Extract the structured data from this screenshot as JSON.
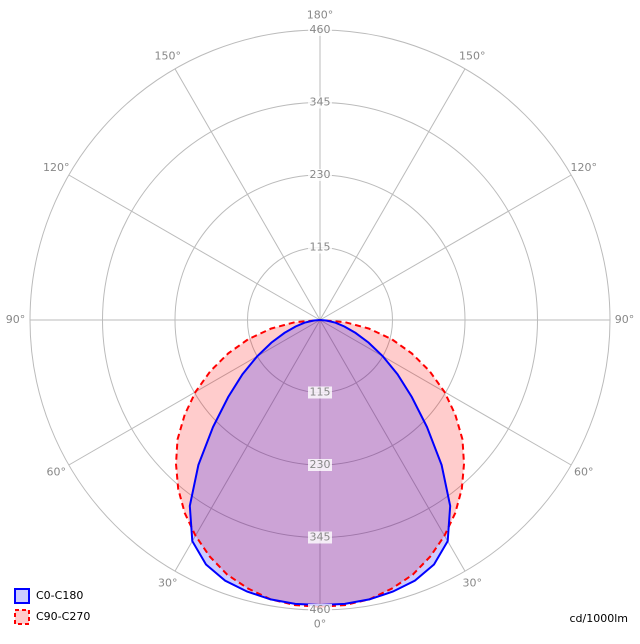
{
  "chart_data": {
    "type": "polar",
    "unit": "cd/1000lm",
    "rlim": [
      0,
      460
    ],
    "rticks": [
      115,
      230,
      345,
      460
    ],
    "angle_ticks": [
      {
        "value": 0,
        "label": "0°"
      },
      {
        "value": 30,
        "label": "30°"
      },
      {
        "value": 60,
        "label": "60°"
      },
      {
        "value": 90,
        "label": "90°"
      },
      {
        "value": 120,
        "label": "120°"
      },
      {
        "value": 150,
        "label": "150°"
      },
      {
        "value": 180,
        "label": "180°"
      }
    ],
    "gamma": [
      0,
      5,
      10,
      15,
      20,
      25,
      30,
      35,
      40,
      45,
      50,
      55,
      60,
      65,
      70,
      75,
      80,
      85,
      90
    ],
    "series": [
      {
        "name": "C90-C270",
        "color": "#ff0000",
        "dashed": true,
        "values": [
          455,
          454,
          450,
          441,
          430,
          414,
          395,
          374,
          350,
          323,
          295,
          262,
          228,
          192,
          155,
          118,
          79,
          40,
          0
        ]
      },
      {
        "name": "C0-C180",
        "color": "#0000ff",
        "dashed": false,
        "values": [
          452,
          452,
          450,
          446,
          440,
          428,
          405,
          360,
          300,
          240,
          190,
          150,
          115,
          85,
          60,
          40,
          25,
          10,
          0
        ]
      }
    ]
  }
}
